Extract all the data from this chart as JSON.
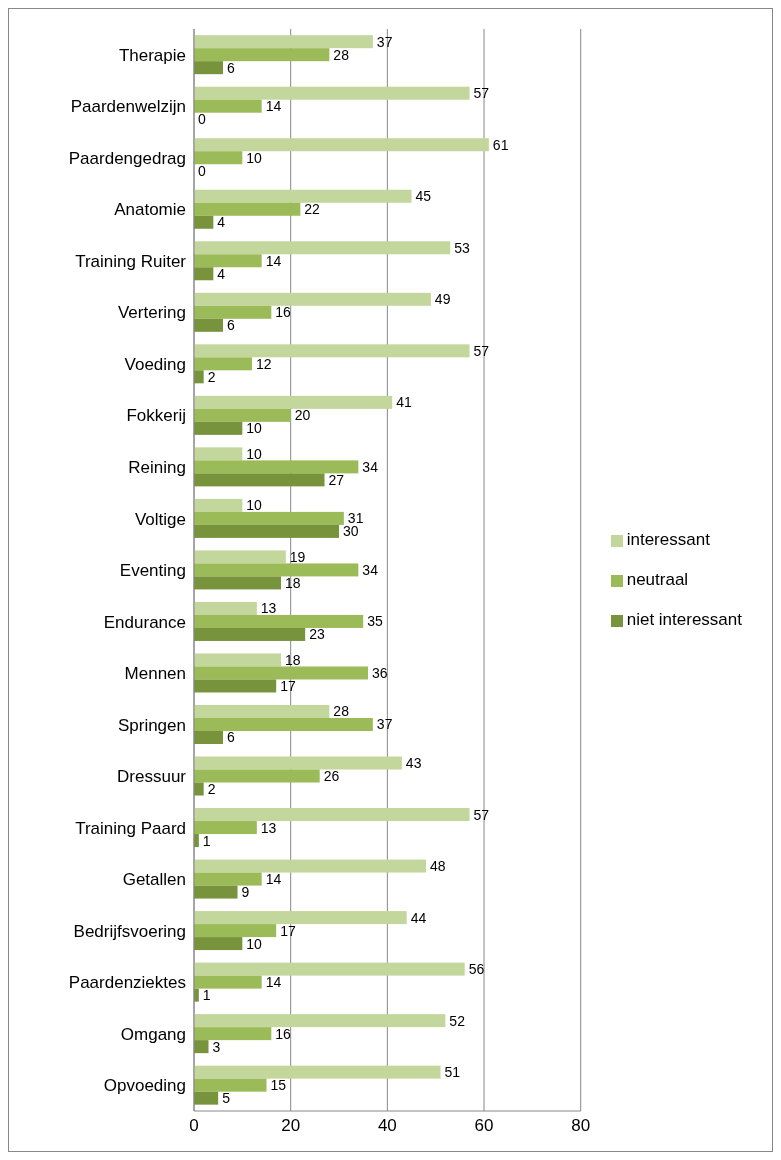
{
  "chart_data": {
    "type": "bar",
    "orientation": "horizontal",
    "categories": [
      "Therapie",
      "Paardenwelzijn",
      "Paardengedrag",
      "Anatomie",
      "Training Ruiter",
      "Vertering",
      "Voeding",
      "Fokkerij",
      "Reining",
      "Voltige",
      "Eventing",
      "Endurance",
      "Mennen",
      "Springen",
      "Dressuur",
      "Training Paard",
      "Getallen",
      "Bedrijfsvoering",
      "Paardenziektes",
      "Omgang",
      "Opvoeding"
    ],
    "series": [
      {
        "name": "interessant",
        "color": "#c3d69b",
        "values": [
          37,
          57,
          61,
          45,
          53,
          49,
          57,
          41,
          10,
          10,
          19,
          13,
          18,
          28,
          43,
          57,
          48,
          44,
          56,
          52,
          51
        ]
      },
      {
        "name": "neutraal",
        "color": "#9bbb59",
        "values": [
          28,
          14,
          10,
          22,
          14,
          16,
          12,
          20,
          34,
          31,
          34,
          35,
          36,
          37,
          26,
          13,
          14,
          17,
          14,
          16,
          15
        ]
      },
      {
        "name": "niet interessant",
        "color": "#77933c",
        "values": [
          6,
          0,
          0,
          4,
          4,
          6,
          2,
          10,
          27,
          30,
          18,
          23,
          17,
          6,
          2,
          1,
          9,
          10,
          1,
          3,
          5
        ]
      }
    ],
    "xlim": [
      0,
      80
    ],
    "xticks": [
      0,
      20,
      40,
      60,
      80
    ],
    "grid": "x",
    "legend": "right",
    "data_labels": true
  }
}
